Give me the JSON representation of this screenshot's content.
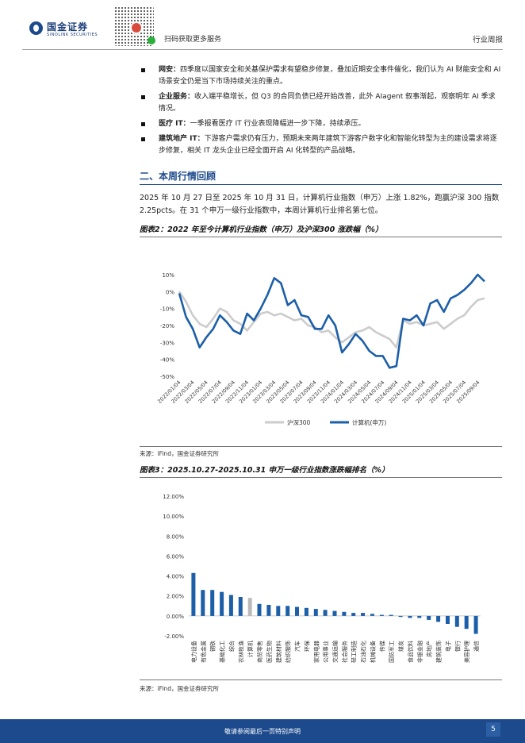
{
  "header": {
    "logo_cn": "国金证券",
    "logo_en": "SINOLINK SECURITIES",
    "qr_caption": "扫码获取更多服务",
    "doc_type": "行业周报"
  },
  "bullets": [
    {
      "label": "网安：",
      "text": "四季度以国家安全和关基保护需求有望稳步修复，叠加近期安全事件催化，我们认为 AI 财能安全和 AI 场景安全仍是当下市场持续关注的重点。"
    },
    {
      "label": "企业服务：",
      "text": "收入端平稳增长，但 Q3 的合同负债已经开始改善，此外 AIagent 叙事渐起，观察明年 AI 季求情况。"
    },
    {
      "label": "医疗 IT：",
      "text": "一季报看医疗 IT 行业表现降幅进一步下降，持续承压。"
    },
    {
      "label": "建筑地产 IT：",
      "text": "下游客户需求仍有压力，预期未来两年建筑下游客户数字化和智能化转型为主的建设需求将逐步修复，相关 IT 龙头企业已经全面开启 AI 化转型的产品战略。"
    }
  ],
  "section": {
    "title": "二、本周行情回顾",
    "paragraph": "2025 年 10 月 27 日至 2025 年 10 月 31 日，计算机行业指数（申万）上涨 1.82%，跑赢沪深 300 指数 2.25pcts。在 31 个申万一级行业指数中，本周计算机行业排名第七位。"
  },
  "figure2": {
    "title": "图表2：2022 年至今计算机行业指数（申万）及沪深300 涨跌幅（%）",
    "source": "来源：iFind，国金证券研究所"
  },
  "figure3": {
    "title": "图表3：2025.10.27-2025.10.31 申万一级行业指数涨跌幅排名（%）",
    "source": "来源：iFind，国金证券研究所"
  },
  "chart_data": [
    {
      "type": "line",
      "ylim": [
        -50,
        10
      ],
      "yticks": [
        "10%",
        "0%",
        "-10%",
        "-20%",
        "-30%",
        "-40%",
        "-50%"
      ],
      "ytick_values": [
        10,
        0,
        -10,
        -20,
        -30,
        -40,
        -50
      ],
      "x_tick_labels": [
        "2022/01/04",
        "2022/03/04",
        "2022/05/04",
        "2022/07/04",
        "2022/09/04",
        "2022/11/04",
        "2023/01/04",
        "2023/03/04",
        "2023/05/04",
        "2023/07/04",
        "2023/09/04",
        "2023/11/04",
        "2024/01/04",
        "2024/03/04",
        "2024/05/04",
        "2024/07/04",
        "2024/09/04",
        "2024/11/04",
        "2025/01/04",
        "2025/03/04",
        "2025/05/04",
        "2025/07/04",
        "2025/09/04"
      ],
      "x": [
        "2022-01-04",
        "2022-02-04",
        "2022-03-04",
        "2022-04-04",
        "2022-05-04",
        "2022-06-04",
        "2022-07-04",
        "2022-08-04",
        "2022-09-04",
        "2022-10-04",
        "2022-11-04",
        "2022-12-04",
        "2023-01-04",
        "2023-02-04",
        "2023-03-04",
        "2023-04-04",
        "2023-05-04",
        "2023-06-04",
        "2023-07-04",
        "2023-08-04",
        "2023-09-04",
        "2023-10-04",
        "2023-11-04",
        "2023-12-04",
        "2024-01-04",
        "2024-02-04",
        "2024-03-04",
        "2024-04-04",
        "2024-05-04",
        "2024-06-04",
        "2024-07-04",
        "2024-08-04",
        "2024-09-04",
        "2024-10-04",
        "2024-11-04",
        "2024-12-04",
        "2025-01-04",
        "2025-02-04",
        "2025-03-04",
        "2025-04-04",
        "2025-05-04",
        "2025-06-04",
        "2025-07-04",
        "2025-08-04",
        "2025-09-04",
        "2025-10-31"
      ],
      "series": [
        {
          "name": "沪深300",
          "color": "#cccccc",
          "values": [
            0,
            -6,
            -14,
            -19,
            -21,
            -16,
            -10,
            -12,
            -17,
            -19,
            -23,
            -18,
            -13,
            -12,
            -14,
            -13,
            -15,
            -17,
            -16,
            -20,
            -21,
            -24,
            -23,
            -27,
            -30,
            -27,
            -24,
            -23,
            -21,
            -24,
            -26,
            -28,
            -33,
            -17,
            -19,
            -18,
            -20,
            -19,
            -18,
            -22,
            -19,
            -16,
            -14,
            -9,
            -5,
            -4
          ]
        },
        {
          "name": "计算机(申万)",
          "color": "#1c5fa8",
          "values": [
            -1,
            -15,
            -22,
            -33,
            -27,
            -22,
            -14,
            -18,
            -23,
            -25,
            -13,
            -17,
            -10,
            -2,
            8,
            5,
            -8,
            -5,
            -14,
            -15,
            -22,
            -22,
            -14,
            -20,
            -36,
            -31,
            -25,
            -29,
            -35,
            -38,
            -38,
            -45,
            -44,
            -16,
            -17,
            -14,
            -20,
            -7,
            -5,
            -12,
            -4,
            -2,
            1,
            5,
            10,
            6
          ]
        }
      ],
      "legend_position": "bottom"
    },
    {
      "type": "bar",
      "ylim": [
        -2,
        12
      ],
      "yticks": [
        "12.00%",
        "10.00%",
        "8.00%",
        "6.00%",
        "4.00%",
        "2.00%",
        "0.00%",
        "-2.00%"
      ],
      "ytick_values": [
        12,
        10,
        8,
        6,
        4,
        2,
        0,
        -2
      ],
      "highlight_category": "计算机",
      "highlight_color": "#bbbbbb",
      "bar_color": "#1c5fa8",
      "categories": [
        "电力设备",
        "有色金属",
        "钢铁",
        "基础化工",
        "综合",
        "农林牧渔",
        "计算机",
        "商贸零售",
        "医药生物",
        "建筑材料",
        "纺织服饰",
        "汽车",
        "环保",
        "家用电器",
        "公用事业",
        "交通运输",
        "社会服务",
        "轻工制造",
        "石油石化",
        "机械设备",
        "传媒",
        "国防军工",
        "煤炭",
        "食品饮料",
        "非银金融",
        "房地产",
        "建筑装饰",
        "电子",
        "银行",
        "美容护理",
        "通信"
      ],
      "values": [
        4.3,
        2.6,
        2.6,
        2.4,
        2.1,
        1.9,
        1.8,
        1.2,
        1.1,
        1.0,
        1.0,
        0.9,
        0.8,
        0.7,
        0.6,
        0.5,
        0.4,
        0.3,
        0.3,
        0.2,
        0.1,
        0.1,
        -0.1,
        -0.2,
        -0.2,
        -0.4,
        -0.6,
        -0.8,
        -1.1,
        -1.3,
        -1.8
      ]
    }
  ],
  "footer": {
    "text": "敬请参阅最后一页特别声明",
    "page": "5"
  }
}
